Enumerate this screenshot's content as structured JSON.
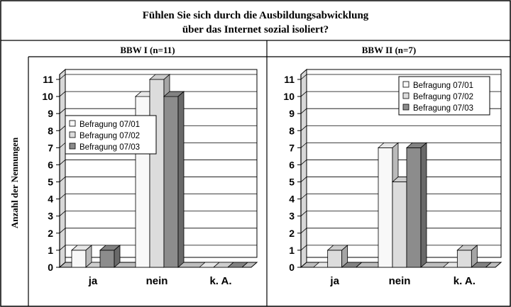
{
  "title": {
    "line1": "Fühlen Sie sich durch die Ausbildungsabwicklung",
    "line2": "über das Internet sozial isoliert?"
  },
  "ylabel": "Anzahl der Nennungen",
  "colors": {
    "series": [
      "#f8f8f8",
      "#dcdcdc",
      "#8c8c8c"
    ]
  },
  "chart_data": [
    {
      "type": "bar",
      "title": "BBW I (n=11)",
      "categories": [
        "ja",
        "nein",
        "k. A."
      ],
      "series": [
        {
          "name": "Befragung 07/01",
          "values": [
            1,
            10,
            0
          ]
        },
        {
          "name": "Befragung 07/02",
          "values": [
            0,
            11,
            0
          ]
        },
        {
          "name": "Befragung 07/03",
          "values": [
            1,
            10,
            0
          ]
        }
      ],
      "ylim": [
        0,
        11
      ],
      "yticks": [
        0,
        1,
        2,
        3,
        4,
        5,
        6,
        7,
        8,
        9,
        10,
        11
      ],
      "grid": true,
      "legend": "left"
    },
    {
      "type": "bar",
      "title": "BBW II (n=7)",
      "categories": [
        "ja",
        "nein",
        "k. A."
      ],
      "series": [
        {
          "name": "Befragung 07/01",
          "values": [
            0,
            7,
            0
          ]
        },
        {
          "name": "Befragung 07/02",
          "values": [
            1,
            5,
            1
          ]
        },
        {
          "name": "Befragung 07/03",
          "values": [
            0,
            7,
            0
          ]
        }
      ],
      "ylim": [
        0,
        11
      ],
      "yticks": [
        0,
        1,
        2,
        3,
        4,
        5,
        6,
        7,
        8,
        9,
        10,
        11
      ],
      "grid": true,
      "legend": "top-right"
    }
  ]
}
